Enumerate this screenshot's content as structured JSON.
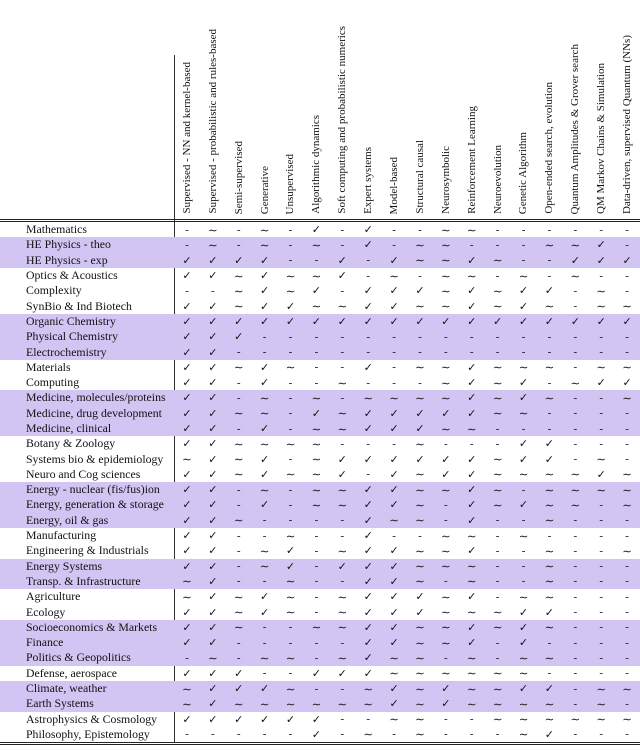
{
  "table": {
    "columns": [
      "Supervised - NN and kernel-based",
      "Supervised - probabilistic and rules-based",
      "Semi-supervised",
      "Generative",
      "Unsupervised",
      "Algorithmic dynamics",
      "Soft computing and probabilistic numerics",
      "Expert systems",
      "Model-based",
      "Structural causal",
      "Neurosymbolic",
      "Reinforcement Learning",
      "Neuroevolution",
      "Genetic Algorithm",
      "Open-ended search, evolution",
      "Quantum Amplitudes & Grover search",
      "QM Markov Chains & Simulation",
      "Data-driven, supervised Quantum (NNs)"
    ],
    "symbols": {
      "check": "✓",
      "tilde": "∼",
      "dash": "-"
    },
    "rows": [
      {
        "label": "Mathematics",
        "highlight": false,
        "cells": [
          "-",
          "∼",
          "-",
          "∼",
          "-",
          "✓",
          "-",
          "✓",
          "-",
          "-",
          "∼",
          "∼",
          "-",
          "-",
          "-",
          "-",
          "-",
          "-"
        ]
      },
      {
        "label": "HE Physics - theo",
        "highlight": true,
        "cells": [
          "-",
          "∼",
          "-",
          "∼",
          "-",
          "∼",
          "-",
          "✓",
          "-",
          "∼",
          "∼",
          "-",
          "-",
          "-",
          "∼",
          "∼",
          "✓",
          "-"
        ]
      },
      {
        "label": "HE Physics - exp",
        "highlight": true,
        "cells": [
          "✓",
          "✓",
          "✓",
          "✓",
          "-",
          "-",
          "✓",
          "-",
          "✓",
          "∼",
          "∼",
          "✓",
          "∼",
          "-",
          "-",
          "✓",
          "✓",
          "✓"
        ]
      },
      {
        "label": "Optics & Acoustics",
        "highlight": false,
        "cells": [
          "✓",
          "✓",
          "∼",
          "✓",
          "∼",
          "∼",
          "✓",
          "-",
          "∼",
          "-",
          "∼",
          "∼",
          "-",
          "∼",
          "-",
          "∼",
          "-",
          "-"
        ]
      },
      {
        "label": "Complexity",
        "highlight": false,
        "cells": [
          "-",
          "-",
          "∼",
          "✓",
          "∼",
          "✓",
          "-",
          "✓",
          "✓",
          "✓",
          "∼",
          "✓",
          "∼",
          "✓",
          "✓",
          "-",
          "∼",
          "-"
        ]
      },
      {
        "label": "SynBio & Ind Biotech",
        "highlight": false,
        "cells": [
          "✓",
          "✓",
          "∼",
          "✓",
          "✓",
          "∼",
          "∼",
          "✓",
          "✓",
          "∼",
          "∼",
          "✓",
          "∼",
          "✓",
          "∼",
          "-",
          "∼",
          "∼"
        ]
      },
      {
        "label": "Organic Chemistry",
        "highlight": true,
        "cells": [
          "✓",
          "✓",
          "✓",
          "✓",
          "✓",
          "✓",
          "✓",
          "✓",
          "✓",
          "✓",
          "✓",
          "✓",
          "✓",
          "✓",
          "✓",
          "✓",
          "✓",
          "✓"
        ]
      },
      {
        "label": "Physical Chemistry",
        "highlight": true,
        "cells": [
          "✓",
          "✓",
          "✓",
          "-",
          "-",
          "-",
          "-",
          "-",
          "-",
          "-",
          "-",
          "-",
          "-",
          "-",
          "-",
          "-",
          "-",
          "-"
        ]
      },
      {
        "label": "Electrochemistry",
        "highlight": true,
        "cells": [
          "✓",
          "✓",
          "-",
          "-",
          "-",
          "-",
          "-",
          "-",
          "-",
          "-",
          "-",
          "-",
          "-",
          "-",
          "-",
          "-",
          "-",
          "-"
        ]
      },
      {
        "label": "Materials",
        "highlight": false,
        "cells": [
          "✓",
          "✓",
          "∼",
          "✓",
          "∼",
          "-",
          "-",
          "✓",
          "-",
          "∼",
          "∼",
          "✓",
          "∼",
          "∼",
          "∼",
          "-",
          "∼",
          "∼"
        ]
      },
      {
        "label": "Computing",
        "highlight": false,
        "cells": [
          "✓",
          "✓",
          "-",
          "✓",
          "-",
          "-",
          "∼",
          "-",
          "-",
          "-",
          "∼",
          "✓",
          "∼",
          "✓",
          "-",
          "∼",
          "✓",
          "✓"
        ]
      },
      {
        "label": "Medicine, molecules/proteins",
        "highlight": true,
        "cells": [
          "✓",
          "✓",
          "-",
          "∼",
          "-",
          "∼",
          "-",
          "∼",
          "∼",
          "∼",
          "∼",
          "✓",
          "∼",
          "✓",
          "∼",
          "-",
          "-",
          "∼"
        ]
      },
      {
        "label": "Medicine, drug development",
        "highlight": true,
        "cells": [
          "✓",
          "✓",
          "∼",
          "∼",
          "-",
          "✓",
          "∼",
          "✓",
          "✓",
          "✓",
          "✓",
          "✓",
          "∼",
          "∼",
          "-",
          "-",
          "-",
          "-"
        ]
      },
      {
        "label": "Medicine, clinical",
        "highlight": true,
        "cells": [
          "✓",
          "✓",
          "-",
          "✓",
          "-",
          "∼",
          "∼",
          "✓",
          "✓",
          "✓",
          "∼",
          "∼",
          "-",
          "-",
          "-",
          "-",
          "-",
          "-"
        ]
      },
      {
        "label": "Botany & Zoology",
        "highlight": false,
        "cells": [
          "✓",
          "✓",
          "∼",
          "∼",
          "∼",
          "∼",
          "-",
          "-",
          "-",
          "∼",
          "-",
          "-",
          "-",
          "✓",
          "✓",
          "-",
          "-",
          "-"
        ]
      },
      {
        "label": "Systems bio & epidemiology",
        "highlight": false,
        "cells": [
          "∼",
          "✓",
          "∼",
          "✓",
          "-",
          "∼",
          "✓",
          "✓",
          "✓",
          "✓",
          "✓",
          "✓",
          "∼",
          "✓",
          "✓",
          "-",
          "∼",
          "-"
        ]
      },
      {
        "label": "Neuro and Cog sciences",
        "highlight": false,
        "cells": [
          "✓",
          "✓",
          "∼",
          "✓",
          "∼",
          "∼",
          "✓",
          "-",
          "✓",
          "∼",
          "✓",
          "✓",
          "∼",
          "∼",
          "∼",
          "∼",
          "✓",
          "∼"
        ]
      },
      {
        "label": "Energy - nuclear (fis/fus)ion",
        "highlight": true,
        "cells": [
          "✓",
          "✓",
          "-",
          "∼",
          "-",
          "∼",
          "∼",
          "✓",
          "✓",
          "∼",
          "∼",
          "✓",
          "∼",
          "-",
          "∼",
          "∼",
          "∼",
          "∼"
        ]
      },
      {
        "label": "Energy, generation & storage",
        "highlight": true,
        "cells": [
          "✓",
          "✓",
          "-",
          "✓",
          "-",
          "∼",
          "∼",
          "✓",
          "✓",
          "∼",
          "-",
          "✓",
          "∼",
          "✓",
          "∼",
          "∼",
          "-",
          "∼"
        ]
      },
      {
        "label": "Energy, oil & gas",
        "highlight": true,
        "cells": [
          "✓",
          "✓",
          "∼",
          "-",
          "-",
          "-",
          "-",
          "✓",
          "∼",
          "∼",
          "-",
          "✓",
          "-",
          "-",
          "∼",
          "-",
          "-",
          "-"
        ]
      },
      {
        "label": "Manufacturing",
        "highlight": false,
        "cells": [
          "✓",
          "✓",
          "-",
          "-",
          "∼",
          "-",
          "-",
          "✓",
          "-",
          "-",
          "∼",
          "∼",
          "-",
          "∼",
          "-",
          "-",
          "-",
          "-"
        ]
      },
      {
        "label": "Engineering & Industrials",
        "highlight": false,
        "cells": [
          "✓",
          "✓",
          "-",
          "∼",
          "✓",
          "-",
          "∼",
          "✓",
          "✓",
          "∼",
          "∼",
          "✓",
          "-",
          "-",
          "∼",
          "-",
          "-",
          "∼"
        ]
      },
      {
        "label": "Energy Systems",
        "highlight": true,
        "cells": [
          "✓",
          "✓",
          "-",
          "∼",
          "✓",
          "-",
          "✓",
          "✓",
          "✓",
          "∼",
          "∼",
          "∼",
          "-",
          "-",
          "∼",
          "-",
          "-",
          "-"
        ]
      },
      {
        "label": "Transp. & Infrastructure",
        "highlight": true,
        "cells": [
          "∼",
          "✓",
          "-",
          "-",
          "∼",
          "-",
          "-",
          "✓",
          "✓",
          "∼",
          "-",
          "∼",
          "-",
          "-",
          "∼",
          "-",
          "-",
          "-"
        ]
      },
      {
        "label": "Agriculture",
        "highlight": false,
        "cells": [
          "∼",
          "✓",
          "∼",
          "✓",
          "∼",
          "-",
          "∼",
          "✓",
          "✓",
          "✓",
          "∼",
          "✓",
          "-",
          "∼",
          "∼",
          "-",
          "-",
          "-"
        ]
      },
      {
        "label": "Ecology",
        "highlight": false,
        "cells": [
          "✓",
          "✓",
          "∼",
          "✓",
          "∼",
          "-",
          "∼",
          "✓",
          "✓",
          "✓",
          "∼",
          "∼",
          "∼",
          "✓",
          "✓",
          "-",
          "-",
          "-"
        ]
      },
      {
        "label": "Socioeconomics & Markets",
        "highlight": true,
        "cells": [
          "✓",
          "✓",
          "∼",
          "-",
          "-",
          "∼",
          "∼",
          "✓",
          "✓",
          "∼",
          "∼",
          "✓",
          "∼",
          "✓",
          "∼",
          "-",
          "-",
          "-"
        ]
      },
      {
        "label": "Finance",
        "highlight": true,
        "cells": [
          "✓",
          "✓",
          "-",
          "-",
          "-",
          "-",
          "-",
          "✓",
          "✓",
          "∼",
          "∼",
          "✓",
          "-",
          "✓",
          "-",
          "-",
          "-",
          "-"
        ]
      },
      {
        "label": "Politics & Geopolitics",
        "highlight": true,
        "cells": [
          "-",
          "∼",
          "-",
          "∼",
          "∼",
          "-",
          "∼",
          "✓",
          "∼",
          "∼",
          "-",
          "∼",
          "-",
          "∼",
          "∼",
          "-",
          "-",
          "-"
        ]
      },
      {
        "label": "Defense, aerospace",
        "highlight": false,
        "cells": [
          "✓",
          "✓",
          "✓",
          "-",
          "-",
          "✓",
          "✓",
          "✓",
          "∼",
          "∼",
          "∼",
          "∼",
          "∼",
          "∼",
          "-",
          "-",
          "-",
          "-"
        ]
      },
      {
        "label": "Climate, weather",
        "highlight": true,
        "cells": [
          "∼",
          "✓",
          "✓",
          "✓",
          "∼",
          "-",
          "-",
          "∼",
          "✓",
          "∼",
          "✓",
          "∼",
          "∼",
          "✓",
          "✓",
          "-",
          "∼",
          "∼"
        ]
      },
      {
        "label": "Earth Systems",
        "highlight": true,
        "cells": [
          "∼",
          "✓",
          "∼",
          "∼",
          "∼",
          "∼",
          "∼",
          "∼",
          "✓",
          "∼",
          "✓",
          "∼",
          "∼",
          "∼",
          "∼",
          "-",
          "∼",
          "-"
        ]
      },
      {
        "label": "Astrophysics & Cosmology",
        "highlight": false,
        "cells": [
          "✓",
          "✓",
          "✓",
          "✓",
          "✓",
          "✓",
          "-",
          "-",
          "∼",
          "∼",
          "-",
          "-",
          "∼",
          "∼",
          "∼",
          "∼",
          "∼",
          "∼"
        ]
      },
      {
        "label": "Philosophy, Epistemology",
        "highlight": false,
        "cells": [
          "-",
          "-",
          "-",
          "-",
          "-",
          "✓",
          "-",
          "∼",
          "-",
          "∼",
          "-",
          "-",
          "-",
          "∼",
          "✓",
          "-",
          "-",
          "-"
        ]
      }
    ]
  },
  "colors": {
    "highlight_row": "#d3c5f3",
    "text": "#111111",
    "rule": "#222222",
    "background": "#ffffff"
  }
}
